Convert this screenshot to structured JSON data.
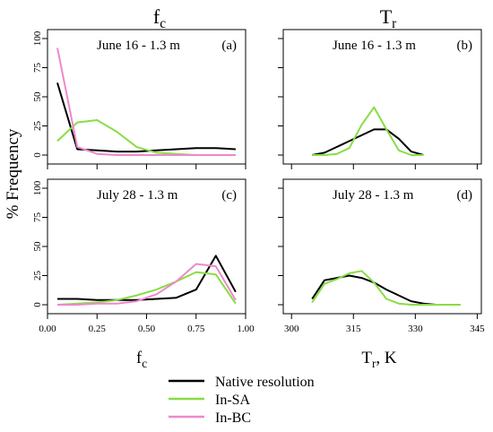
{
  "figure": {
    "ylabel": "% Frequency",
    "col_titles": [
      {
        "main": "f",
        "sub": "c"
      },
      {
        "main": "T",
        "sub": "r"
      }
    ],
    "col_xlabels": [
      {
        "main": "f",
        "sub": "c",
        "suffix": ""
      },
      {
        "main": "T",
        "sub": "r",
        "suffix": ", K"
      }
    ]
  },
  "legend": [
    {
      "name": "Native resolution",
      "color": "#000000"
    },
    {
      "name": "In-SA",
      "color": "#88dd44"
    },
    {
      "name": "In-BC",
      "color": "#ee88cc"
    }
  ],
  "chart_data": [
    {
      "type": "line",
      "title": "June 16 - 1.3 m",
      "panel_tag": "(a)",
      "xlim": [
        0,
        1
      ],
      "ylim": [
        0,
        100
      ],
      "xticks": [
        0.0,
        0.25,
        0.5,
        0.75,
        1.0
      ],
      "xticklabels": [],
      "yticks": [
        0,
        25,
        50,
        75,
        100
      ],
      "yticklabels": [
        "0",
        "25",
        "50",
        "75",
        "100"
      ],
      "series": [
        {
          "name": "Native resolution",
          "x": [
            0.05,
            0.15,
            0.25,
            0.35,
            0.45,
            0.55,
            0.65,
            0.75,
            0.85,
            0.95
          ],
          "y": [
            62,
            5,
            4,
            3,
            3,
            4,
            5,
            6,
            6,
            5
          ]
        },
        {
          "name": "In-SA",
          "x": [
            0.05,
            0.15,
            0.25,
            0.35,
            0.45,
            0.55,
            0.65,
            0.75,
            0.85,
            0.95
          ],
          "y": [
            12,
            28,
            30,
            20,
            7,
            2,
            1,
            0,
            0,
            0
          ]
        },
        {
          "name": "In-BC",
          "x": [
            0.05,
            0.15,
            0.25,
            0.35,
            0.45,
            0.55,
            0.65,
            0.75,
            0.85,
            0.95
          ],
          "y": [
            92,
            7,
            1,
            0,
            0,
            0,
            0,
            0,
            0,
            0
          ]
        }
      ]
    },
    {
      "type": "line",
      "title": "June 16 - 1.3 m",
      "panel_tag": "(b)",
      "xlim": [
        298,
        346
      ],
      "ylim": [
        0,
        100
      ],
      "xticks": [
        300,
        315,
        330,
        345
      ],
      "xticklabels": [],
      "yticks": [
        0,
        25,
        50,
        75,
        100
      ],
      "yticklabels": [],
      "series": [
        {
          "name": "Native resolution",
          "x": [
            305,
            308,
            311,
            314,
            317,
            320,
            323,
            326,
            329,
            332
          ],
          "y": [
            0,
            2,
            7,
            12,
            17,
            22,
            22,
            14,
            3,
            0
          ]
        },
        {
          "name": "In-SA",
          "x": [
            305,
            308,
            311,
            314,
            317,
            320,
            323,
            326,
            329,
            332
          ],
          "y": [
            0,
            0,
            1,
            6,
            26,
            41,
            22,
            4,
            0,
            0
          ]
        }
      ]
    },
    {
      "type": "line",
      "title": "July 28 - 1.3 m",
      "panel_tag": "(c)",
      "xlim": [
        0,
        1
      ],
      "ylim": [
        0,
        100
      ],
      "xticks": [
        0.0,
        0.25,
        0.5,
        0.75,
        1.0
      ],
      "xticklabels": [
        "0.00",
        "0.25",
        "0.50",
        "0.75",
        "1.00"
      ],
      "yticks": [
        0,
        25,
        50,
        75,
        100
      ],
      "yticklabels": [
        "0",
        "25",
        "50",
        "75",
        "100"
      ],
      "series": [
        {
          "name": "Native resolution",
          "x": [
            0.05,
            0.15,
            0.25,
            0.35,
            0.45,
            0.55,
            0.65,
            0.75,
            0.85,
            0.95
          ],
          "y": [
            5,
            5,
            4,
            4,
            4,
            5,
            6,
            13,
            42,
            11
          ]
        },
        {
          "name": "In-SA",
          "x": [
            0.05,
            0.15,
            0.25,
            0.35,
            0.45,
            0.55,
            0.65,
            0.75,
            0.85,
            0.95
          ],
          "y": [
            0,
            1,
            2,
            4,
            8,
            13,
            20,
            28,
            26,
            1
          ]
        },
        {
          "name": "In-BC",
          "x": [
            0.05,
            0.15,
            0.25,
            0.35,
            0.45,
            0.55,
            0.65,
            0.75,
            0.85,
            0.95
          ],
          "y": [
            0,
            0,
            1,
            1,
            3,
            9,
            20,
            35,
            33,
            4
          ]
        }
      ]
    },
    {
      "type": "line",
      "title": "July 28 - 1.3 m",
      "panel_tag": "(d)",
      "xlim": [
        298,
        346
      ],
      "ylim": [
        0,
        100
      ],
      "xticks": [
        300,
        315,
        330,
        345
      ],
      "xticklabels": [
        "300",
        "315",
        "330",
        "345"
      ],
      "yticks": [
        0,
        25,
        50,
        75,
        100
      ],
      "yticklabels": [],
      "series": [
        {
          "name": "Native resolution",
          "x": [
            305,
            308,
            311,
            314,
            317,
            320,
            323,
            326,
            329,
            332,
            335,
            338,
            341
          ],
          "y": [
            5,
            21,
            23,
            25,
            23,
            19,
            13,
            8,
            3,
            1,
            0,
            0,
            0
          ]
        },
        {
          "name": "In-SA",
          "x": [
            305,
            308,
            311,
            314,
            317,
            320,
            323,
            326,
            329,
            332,
            335,
            338,
            341
          ],
          "y": [
            2,
            18,
            22,
            27,
            29,
            19,
            5,
            1,
            0,
            0,
            0,
            0,
            0
          ]
        }
      ]
    }
  ]
}
